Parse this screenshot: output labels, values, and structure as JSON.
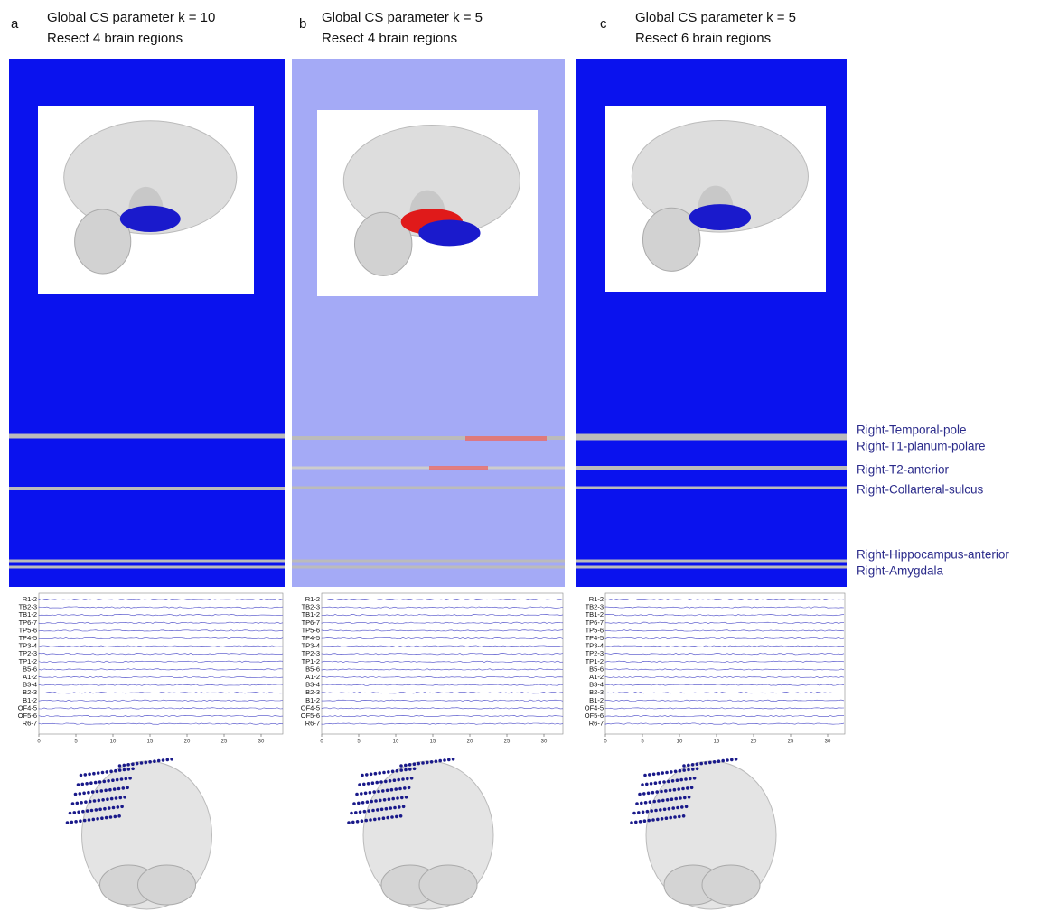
{
  "panels": [
    {
      "letter": "a",
      "title": [
        "Global CS parameter k = 10",
        "Resect 4 brain regions"
      ],
      "channels": [
        "R1-2",
        "TB2-3",
        "TB1-2",
        "TP6-7",
        "TP5-6",
        "TP4-5",
        "TP3-4",
        "TP2-3",
        "TP1-2",
        "B5-6",
        "A1-2",
        "B3-4",
        "B2-3",
        "B1-2",
        "OF4-5",
        "OF5-6",
        "R6-7"
      ],
      "xticks": [
        "0",
        "5",
        "10",
        "15",
        "20",
        "25",
        "30"
      ]
    },
    {
      "letter": "b",
      "title": [
        "Global CS parameter k = 5",
        "Resect 4 brain regions"
      ],
      "channels": [
        "R1-2",
        "TB2-3",
        "TB1-2",
        "TP6-7",
        "TP5-6",
        "TP4-5",
        "TP3-4",
        "TP2-3",
        "TP1-2",
        "B5-6",
        "A1-2",
        "B3-4",
        "B2-3",
        "B1-2",
        "OF4-5",
        "OF5-6",
        "R6-7"
      ],
      "xticks": [
        "0",
        "5",
        "10",
        "15",
        "20",
        "25",
        "30"
      ]
    },
    {
      "letter": "c",
      "title": [
        "Global CS parameter k = 5",
        "Resect 6 brain regions"
      ],
      "channels": [
        "R1-2",
        "TB2-3",
        "TB1-2",
        "TP6-7",
        "TP5-6",
        "TP4-5",
        "TP3-4",
        "TP2-3",
        "TP1-2",
        "B5-6",
        "A1-2",
        "B3-4",
        "B2-3",
        "B1-2",
        "OF4-5",
        "OF5-6",
        "R6-7"
      ],
      "xticks": [
        "0",
        "5",
        "10",
        "15",
        "20",
        "25",
        "30"
      ]
    }
  ],
  "region_labels": [
    "Right-Temporal-pole",
    "Right-T1-planum-polare",
    "Right-T2-anterior",
    "Right-Collarteral-sulcus",
    "Right-Hippocampus-anterior",
    "Right-Amygdala"
  ]
}
